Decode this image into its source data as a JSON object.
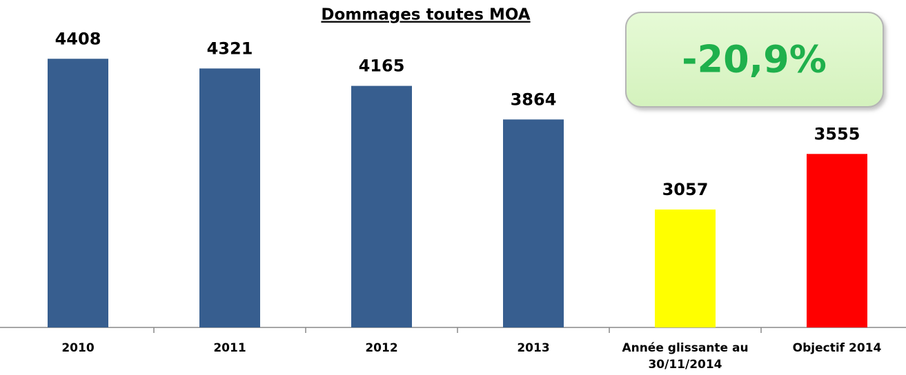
{
  "chart_data": {
    "type": "bar",
    "title": "Dommages toutes MOA",
    "categories": [
      "2010",
      "2011",
      "2012",
      "2013",
      "Année glissante au 30/11/2014",
      "Objectif 2014"
    ],
    "values": [
      4408,
      4321,
      4165,
      3864,
      3057,
      3555
    ],
    "colors": [
      "#375e8f",
      "#375e8f",
      "#375e8f",
      "#375e8f",
      "#ffff00",
      "#ff0000"
    ],
    "ylim": [
      2000,
      4700
    ],
    "annotation": "-20,9%"
  }
}
